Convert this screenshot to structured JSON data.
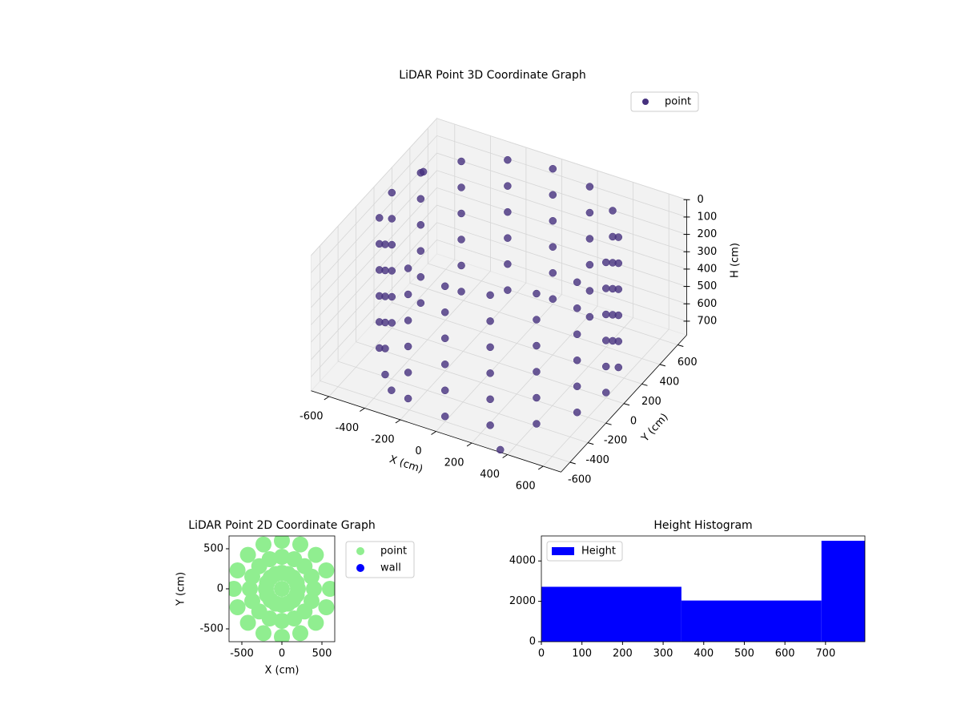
{
  "chart_data": [
    {
      "type": "scatter3d",
      "title": "LiDAR Point 3D Coordinate Graph",
      "xlabel": "X (cm)",
      "ylabel": "Y (cm)",
      "zlabel": "H (cm)",
      "xlim": [
        -700,
        700
      ],
      "ylim": [
        -700,
        700
      ],
      "zlim": [
        0,
        780
      ],
      "z_inverted": true,
      "xticks": [
        -600,
        -400,
        -200,
        0,
        200,
        400,
        600
      ],
      "yticks": [
        -600,
        -400,
        -200,
        0,
        200,
        400,
        600
      ],
      "zticks": [
        0,
        100,
        200,
        300,
        400,
        500,
        600,
        700
      ],
      "legend": "upper right",
      "series": [
        {
          "name": "point",
          "color": "#46317e",
          "x": [
            600,
            554,
            424,
            230,
            0,
            -230,
            -424,
            -554,
            -600,
            -554,
            -424,
            -230,
            0,
            230,
            424,
            554,
            600,
            554,
            424,
            230,
            0,
            -230,
            -424,
            -554,
            -600,
            -554,
            -424,
            -230,
            0,
            230,
            424,
            554,
            600,
            554,
            424,
            230,
            0,
            -230,
            -424,
            -554,
            -600,
            -554,
            -424,
            -230,
            0,
            230,
            424,
            554,
            600,
            554,
            424,
            230,
            0,
            -230,
            -424,
            -554,
            -600,
            -554,
            -424,
            -230,
            0,
            230,
            424,
            554,
            600,
            554,
            424,
            230,
            0,
            -230,
            -424,
            -554,
            -600,
            -554,
            -424,
            -230,
            0,
            230,
            424,
            554,
            600,
            554,
            424,
            230,
            0,
            -230,
            -424,
            -554,
            -600,
            -554,
            -424,
            -230,
            0,
            230,
            424,
            554,
            -650,
            -300,
            350
          ],
          "y": [
            0,
            230,
            424,
            554,
            600,
            554,
            424,
            230,
            0,
            -230,
            -424,
            -554,
            -600,
            -554,
            -424,
            -230,
            0,
            230,
            424,
            554,
            600,
            554,
            424,
            230,
            0,
            -230,
            -424,
            -554,
            -600,
            -554,
            -424,
            -230,
            0,
            230,
            424,
            554,
            600,
            554,
            424,
            230,
            0,
            -230,
            -424,
            -554,
            -600,
            -554,
            -424,
            -230,
            0,
            230,
            424,
            554,
            600,
            554,
            424,
            230,
            0,
            -230,
            -424,
            -554,
            -600,
            -554,
            -424,
            -230,
            0,
            230,
            424,
            554,
            600,
            554,
            424,
            230,
            0,
            -230,
            -424,
            -554,
            -600,
            -554,
            -424,
            -230,
            0,
            230,
            424,
            554,
            600,
            554,
            424,
            230,
            0,
            -230,
            -424,
            -554,
            -600,
            -554,
            -424,
            -230,
            450,
            -600,
            -680
          ],
          "z": [
            0,
            0,
            0,
            0,
            0,
            0,
            0,
            0,
            0,
            0,
            0,
            0,
            0,
            0,
            0,
            0,
            150,
            150,
            150,
            150,
            150,
            150,
            150,
            150,
            150,
            150,
            150,
            150,
            150,
            150,
            150,
            150,
            300,
            300,
            300,
            300,
            300,
            300,
            300,
            300,
            300,
            300,
            300,
            300,
            300,
            300,
            300,
            300,
            450,
            450,
            450,
            450,
            450,
            450,
            450,
            450,
            450,
            450,
            450,
            450,
            450,
            450,
            450,
            450,
            600,
            600,
            600,
            600,
            600,
            600,
            600,
            600,
            600,
            600,
            600,
            600,
            600,
            600,
            600,
            600,
            750,
            750,
            750,
            750,
            750,
            750,
            750,
            750,
            750,
            750,
            750,
            750,
            750,
            750,
            750,
            750,
            150,
            700,
            780
          ]
        }
      ]
    },
    {
      "type": "scatter",
      "title": "LiDAR Point 2D Coordinate Graph",
      "xlabel": "X (cm)",
      "ylabel": "Y (cm)",
      "xlim": [
        -660,
        660
      ],
      "ylim": [
        -660,
        660
      ],
      "xticks": [
        -500,
        0,
        500
      ],
      "yticks": [
        -500,
        0,
        500
      ],
      "legend": "outside right",
      "series": [
        {
          "name": "point",
          "color": "#90ee90",
          "x": [
            600,
            554,
            424,
            230,
            0,
            -230,
            -424,
            -554,
            -600,
            -554,
            -424,
            -230,
            0,
            230,
            424,
            554,
            400,
            370,
            283,
            153,
            0,
            -153,
            -283,
            -370,
            -400,
            -370,
            -283,
            -153,
            0,
            153,
            283,
            370,
            200,
            185,
            141,
            77,
            0,
            -77,
            -141,
            -185,
            -200,
            -185,
            -141,
            -77,
            0,
            77,
            141,
            185,
            0
          ],
          "y": [
            0,
            230,
            424,
            554,
            600,
            554,
            424,
            230,
            0,
            -230,
            -424,
            -554,
            -600,
            -554,
            -424,
            -230,
            0,
            153,
            283,
            370,
            400,
            370,
            283,
            153,
            0,
            -153,
            -283,
            -370,
            -400,
            -370,
            -283,
            -153,
            0,
            77,
            141,
            185,
            200,
            185,
            141,
            77,
            0,
            -77,
            -141,
            -185,
            -200,
            -185,
            -141,
            -77,
            0
          ]
        },
        {
          "name": "wall",
          "color": "#0000ff",
          "x": [],
          "y": []
        }
      ]
    },
    {
      "type": "histogram",
      "title": "Height Histogram",
      "bins": [
        0,
        345,
        690,
        797
      ],
      "counts": [
        2720,
        2040,
        5000
      ],
      "xlim": [
        0,
        797
      ],
      "ylim": [
        0,
        5240
      ],
      "xticks": [
        0,
        100,
        200,
        300,
        400,
        500,
        600,
        700
      ],
      "yticks": [
        0,
        2000,
        4000
      ],
      "legend": "upper left",
      "series_name": "Height",
      "color": "#0000ff"
    }
  ]
}
